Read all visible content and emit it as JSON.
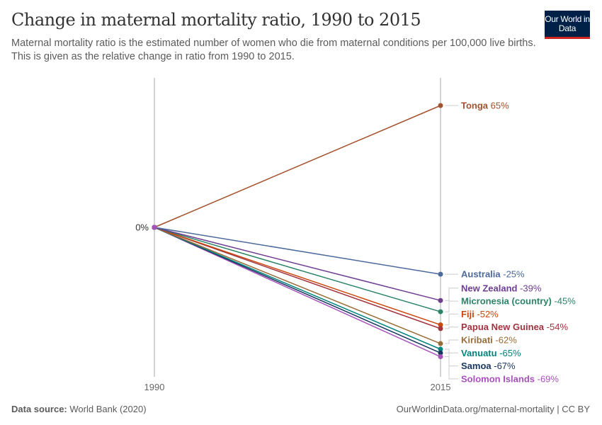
{
  "header": {
    "title": "Change in maternal mortality ratio, 1990 to 2015",
    "subtitle": "Maternal mortality ratio is the estimated number of women who die from maternal conditions per 100,000 live births. This is given as the relative change in ratio from 1990 to 2015.",
    "logo": "Our World in Data"
  },
  "footer": {
    "source_label": "Data source:",
    "source": "World Bank (2020)",
    "url": "OurWorldinData.org/maternal-mortality | CC BY"
  },
  "chart_data": {
    "type": "line",
    "subtype": "slope",
    "x": [
      "1990",
      "2015"
    ],
    "y_unit": "%",
    "y_tick_labels": [
      "0%"
    ],
    "ylim": [
      -69,
      65
    ],
    "grid": false,
    "legend": "right labels",
    "series": [
      {
        "name": "Tonga",
        "values": [
          0,
          65
        ],
        "label": "65%",
        "color": "#a2522c"
      },
      {
        "name": "Australia",
        "values": [
          0,
          -25
        ],
        "label": "-25%",
        "color": "#4c6a9c"
      },
      {
        "name": "New Zealand",
        "values": [
          0,
          -39
        ],
        "label": "-39%",
        "color": "#6d3e91"
      },
      {
        "name": "Micronesia (country)",
        "values": [
          0,
          -45
        ],
        "label": "-45%",
        "color": "#2a8465"
      },
      {
        "name": "Fiji",
        "values": [
          0,
          -52
        ],
        "label": "-52%",
        "color": "#c9480f"
      },
      {
        "name": "Papua New Guinea",
        "values": [
          0,
          -54
        ],
        "label": "-54%",
        "color": "#a2333f"
      },
      {
        "name": "Kiribati",
        "values": [
          0,
          -62
        ],
        "label": "-62%",
        "color": "#996d39"
      },
      {
        "name": "Vanuatu",
        "values": [
          0,
          -65
        ],
        "label": "-65%",
        "color": "#00847e"
      },
      {
        "name": "Samoa",
        "values": [
          0,
          -67
        ],
        "label": "-67%",
        "color": "#18365e"
      },
      {
        "name": "Solomon Islands",
        "values": [
          0,
          -69
        ],
        "label": "-69%",
        "color": "#a652ba"
      }
    ]
  }
}
